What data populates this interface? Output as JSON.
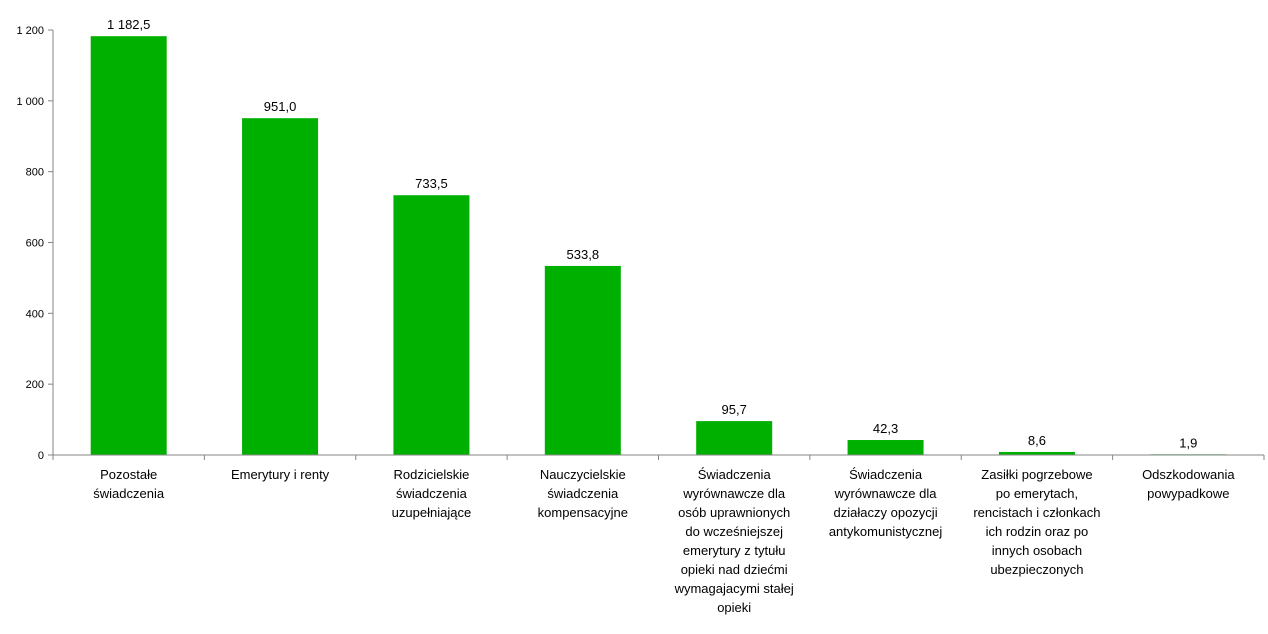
{
  "chart_data": {
    "type": "bar",
    "categories": [
      "Pozostałe\nświadczenia",
      "Emerytury i renty",
      "Rodzicielskie\nświadczenia\nuzupełniające",
      "Nauczycielskie\nświadczenia\nkompensacyjne",
      "Świadczenia\nwyrównawcze dla\nosób uprawnionych\ndo wcześniejszej\nemerytury z tytułu\nopieki nad dziećmi\nwymagajacymi stałej\nopieki",
      "Świadczenia\nwyrównawcze dla\ndziałaczy opozycji\nantykomunistycznej",
      "Zasiłki pogrzebowe\npo emerytach,\nrencistach i członkach\nich rodzin oraz po\ninnych osobach\nubezpieczonych",
      "Odszkodowania\npowypadkowe"
    ],
    "values": [
      1182.5,
      951.0,
      733.5,
      533.8,
      95.7,
      42.3,
      8.6,
      1.9
    ],
    "data_labels": [
      "1 182,5",
      "951,0",
      "733,5",
      "533,8",
      "95,7",
      "42,3",
      "8,6",
      "1,9"
    ],
    "yticks": [
      0,
      200,
      400,
      600,
      800,
      1000,
      1200
    ],
    "ytick_labels": [
      "0",
      "200",
      "400",
      "600",
      "800",
      "1 000",
      "1 200"
    ],
    "ylim": [
      0,
      1200
    ],
    "title": "",
    "xlabel": "",
    "ylabel": "",
    "grid": false,
    "legend": "none",
    "bar_color": "#00b000",
    "axis_color": "#868686"
  }
}
